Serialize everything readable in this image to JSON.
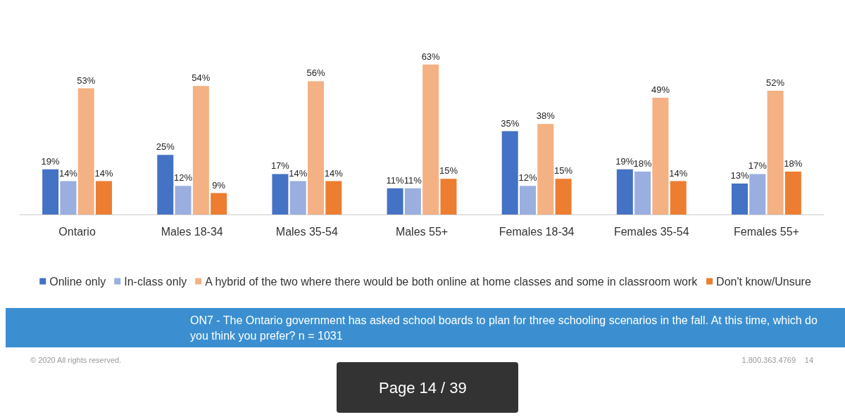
{
  "chart_data": {
    "type": "bar",
    "categories": [
      "Ontario",
      "Males 18-34",
      "Males 35-54",
      "Males 55+",
      "Females 18-34",
      "Females 35-54",
      "Females 55+"
    ],
    "series": [
      {
        "name": "Online only",
        "color": "#4472c4",
        "values": [
          19,
          25,
          17,
          11,
          35,
          19,
          13
        ],
        "value_labels": [
          "19%",
          "25%",
          "17%",
          "11%",
          "35%",
          "19%",
          "13%"
        ]
      },
      {
        "name": "In-class only",
        "color": "#9aafdf",
        "values": [
          14,
          12,
          14,
          11,
          12,
          18,
          17
        ],
        "value_labels": [
          "14%",
          "12%",
          "14%",
          "11%",
          "12%",
          "18%",
          "17%"
        ]
      },
      {
        "name": "A hybrid of the two where there would be both online at home classes and some in classroom work",
        "color": "#f4b183",
        "values": [
          53,
          54,
          56,
          63,
          38,
          49,
          52
        ],
        "value_labels": [
          "53%",
          "54%",
          "56%",
          "63%",
          "38%",
          "49%",
          "52%"
        ]
      },
      {
        "name": "Don't know/Unsure",
        "color": "#ed7d31",
        "values": [
          14,
          9,
          14,
          15,
          15,
          14,
          18
        ],
        "value_labels": [
          "14%",
          "9%",
          "14%",
          "15%",
          "15%",
          "14%",
          "18%"
        ]
      }
    ],
    "legend": "bottom",
    "annotations": [
      "ON7 - The Ontario government has asked school boards to plan for three schooling scenarios in the fall. At this time, which do you think you prefer? n = 1031",
      "© 2020 All rights reserved.",
      "1.800.363.4769",
      "14",
      "Page 14 / 39"
    ]
  }
}
